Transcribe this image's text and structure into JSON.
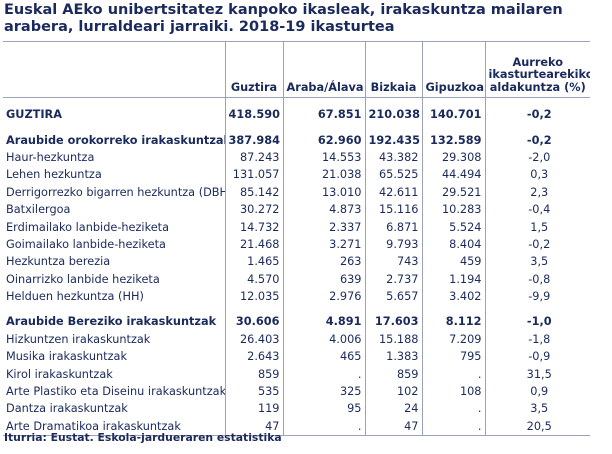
{
  "title": "Euskal AEko unibertsitatez kanpoko ikasleak, irakaskuntza mailaren arabera, lurraldeari jarraiki. 2018-19 ikasturtea",
  "headers": [
    "",
    "Guztira",
    "Araba/Álava",
    "Bizkaia",
    "Gipuzkoa",
    "Aurreko ikasturtearekiko aldakuntza (%)"
  ],
  "rows": [
    {
      "label": "GUZTIRA",
      "values": [
        "418.590",
        "67.851",
        "210.038",
        "140.701",
        "-0,2"
      ],
      "bold": true
    },
    {
      "label": "Araubide orokorreko irakaskuntzak",
      "values": [
        "387.984",
        "62.960",
        "192.435",
        "132.589",
        "-0,2"
      ],
      "bold": true
    },
    {
      "label": "Haur-hezkuntza",
      "values": [
        "87.243",
        "14.553",
        "43.382",
        "29.308",
        "-2,0"
      ]
    },
    {
      "label": "Lehen hezkuntza",
      "values": [
        "131.057",
        "21.038",
        "65.525",
        "44.494",
        "0,3"
      ]
    },
    {
      "label": "Derrigorrezko bigarren hezkuntza (DBH)",
      "values": [
        "85.142",
        "13.010",
        "42.611",
        "29.521",
        "2,3"
      ]
    },
    {
      "label": "Batxilergoa",
      "values": [
        "30.272",
        "4.873",
        "15.116",
        "10.283",
        "-0,4"
      ]
    },
    {
      "label": "Erdimailako lanbide-heziketa",
      "values": [
        "14.732",
        "2.337",
        "6.871",
        "5.524",
        "1,5"
      ]
    },
    {
      "label": "Goimailako lanbide-heziketa",
      "values": [
        "21.468",
        "3.271",
        "9.793",
        "8.404",
        "-0,2"
      ]
    },
    {
      "label": "Hezkuntza berezia",
      "values": [
        "1.465",
        "263",
        "743",
        "459",
        "3,5"
      ]
    },
    {
      "label": "Oinarrizko lanbide heziketa",
      "values": [
        "4.570",
        "639",
        "2.737",
        "1.194",
        "-0,8"
      ]
    },
    {
      "label": "Helduen hezkuntza (HH)",
      "values": [
        "12.035",
        "2.976",
        "5.657",
        "3.402",
        "-9,9"
      ]
    },
    {
      "label": "Araubide Bereziko irakaskuntzak",
      "values": [
        "30.606",
        "4.891",
        "17.603",
        "8.112",
        "-1,0"
      ],
      "bold": true
    },
    {
      "label": "Hizkuntzen  irakaskuntzak",
      "values": [
        "26.403",
        "4.006",
        "15.188",
        "7.209",
        "-1,8"
      ]
    },
    {
      "label": "Musika irakaskuntzak",
      "values": [
        "2.643",
        "465",
        "1.383",
        "795",
        "-0,9"
      ]
    },
    {
      "label": "Kirol  irakaskuntzak",
      "values": [
        "859",
        ".",
        "859",
        ".",
        "31,5"
      ]
    },
    {
      "label": "Arte Plastiko eta Diseinu irakaskuntzak",
      "values": [
        "535",
        "325",
        "102",
        "108",
        "0,9"
      ]
    },
    {
      "label": "Dantza irakaskuntzak",
      "values": [
        "119",
        "95",
        "24",
        ".",
        "3,5"
      ]
    },
    {
      "label": "Arte Dramatikoa irakaskuntzak",
      "values": [
        "47",
        ".",
        "47",
        ".",
        "20,5"
      ]
    }
  ],
  "source": "Iturria: Eustat. Eskola-jardueraren estatistika",
  "colors": {
    "text": "#1b2a5c",
    "rule": "#9aa3b8"
  }
}
